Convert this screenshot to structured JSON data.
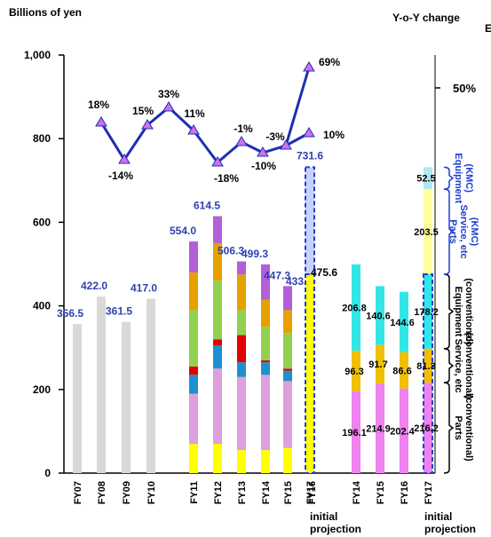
{
  "chart_data": {
    "type": "bar",
    "ylabel": "Billions of yen",
    "y2label": "Y-o-Y change",
    "y2_tick": "50%",
    "corner_text": "E",
    "ylim": [
      0,
      1000
    ],
    "yticks": [
      "0",
      "200",
      "400",
      "600",
      "800",
      "1,000"
    ],
    "categories": [
      "FY07",
      "FY08",
      "FY09",
      "FY10",
      "FY11",
      "FY12",
      "FY13",
      "FY14",
      "FY15",
      "FY16",
      "FY17",
      "FY14",
      "FY15",
      "FY16",
      "FY17"
    ],
    "projection_label": [
      "initial",
      "projection"
    ],
    "colors": {
      "grey": "#d9d9d9",
      "yellow": "#ffff00",
      "pink": "#dda0dd",
      "blue": "#1e90d0",
      "red": "#e00000",
      "green": "#92d050",
      "orange": "#e6a000",
      "purple": "#b25fd8",
      "magenta": "#ee82ee",
      "gold": "#f0c000",
      "cyan": "#33e6e6",
      "lightyellow": "#ffff99",
      "lightcyan": "#b0e8f0",
      "line": "#1f2fb0",
      "marker": "#d070f0",
      "dashed": "#1f3fd0"
    },
    "totals": [
      "356.5",
      "422.0",
      "361.5",
      "417.0",
      "554.0",
      "614.5",
      "506.3",
      "499.3",
      "447.3",
      "433.6"
    ],
    "grey_values": [
      356.5,
      422.0,
      361.5,
      417.0
    ],
    "stacked": [
      {
        "yellow": 70,
        "pink": 120,
        "blue": 45,
        "red": 20,
        "green": 135,
        "orange": 90,
        "purple": 74
      },
      {
        "yellow": 70,
        "pink": 180,
        "blue": 55,
        "red": 15,
        "green": 140,
        "orange": 90,
        "purple": 64.5
      },
      {
        "yellow": 55,
        "pink": 175,
        "blue": 35,
        "red": 65,
        "green": 60,
        "orange": 85,
        "purple": 31.3
      },
      {
        "yellow": 55,
        "pink": 180,
        "blue": 30,
        "red": 5,
        "green": 80,
        "orange": 65,
        "purple": 84.3
      },
      {
        "yellow": 60,
        "pink": 160,
        "blue": 25,
        "red": 5,
        "green": 85,
        "orange": 55,
        "purple": 57.3
      },
      {
        "yellow": 60,
        "pink": 145,
        "blue": 40,
        "red": 5,
        "green": 50,
        "orange": 50,
        "purple": 83.6
      }
    ],
    "fy17": {
      "total": 475.6,
      "total_label": "475.6",
      "projection": 731.6,
      "projection_label": "731.6"
    },
    "breakdown": [
      {
        "parts": 196.1,
        "service": 96.3,
        "equipment": 206.8,
        "labels": [
          "196.1",
          "96.3",
          "206.8"
        ]
      },
      {
        "parts": 214.9,
        "service": 91.7,
        "equipment": 140.6,
        "labels": [
          "214.9",
          "91.7",
          "140.6"
        ]
      },
      {
        "parts": 202.4,
        "service": 86.6,
        "equipment": 144.6,
        "labels": [
          "202.4",
          "86.6",
          "144.6"
        ]
      },
      {
        "parts": 216.2,
        "service": 81.3,
        "equipment": 178.2,
        "kmc_service": 203.5,
        "kmc_equipment": 52.5,
        "labels": [
          "216.2",
          "81.3",
          "178.2",
          "203.5",
          "52.5"
        ]
      }
    ],
    "yoy_labels": [
      "18%",
      "-14%",
      "15%",
      "33%",
      "11%",
      "-18%",
      "-1%",
      "-10%",
      "-3%",
      "69%",
      "10%"
    ],
    "segments": [
      {
        "lines": [
          "Parts",
          "(conventional)"
        ]
      },
      {
        "lines": [
          "Service, etc",
          "(conventional)"
        ]
      },
      {
        "lines": [
          "Equipment",
          "(conventional)"
        ]
      },
      {
        "lines": [
          "Parts",
          "Service, etc",
          "(KMC)"
        ]
      },
      {
        "lines": [
          "Equipment",
          "(KMC)"
        ]
      }
    ]
  }
}
